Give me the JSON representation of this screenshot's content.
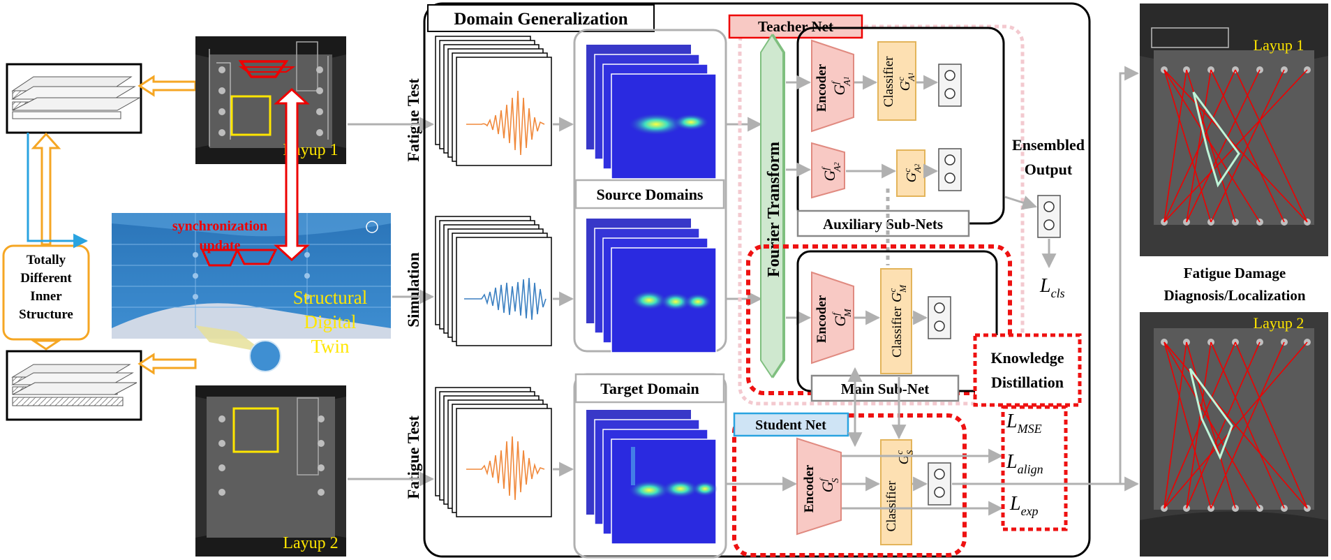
{
  "domain_generalization": "Domain Generalization",
  "teacher_net": "Teacher Net",
  "student_net": "Student Net",
  "rows": {
    "fatigue_test_top": "Fatigue Test",
    "simulation": "Simulation",
    "fatigue_test_bottom": "Fatigue Test"
  },
  "source_domains": "Source Domains",
  "target_domain": "Target Domain",
  "fourier_transform": "Fourier Transform",
  "encoder": "Encoder",
  "classifier": "Classifier",
  "auxiliary_subnets": "Auxiliary Sub-Nets",
  "main_subnet": "Main Sub-Net",
  "ensembled_output": [
    "Ensembled",
    "Output"
  ],
  "knowledge_distillation": [
    "Knowledge",
    "Distillation"
  ],
  "symbols": {
    "G": "G",
    "f": "f",
    "c": "c",
    "A1_base": "A",
    "A1_sub": "1",
    "A2_base": "A",
    "A2_sub": "2",
    "M": "M",
    "S": "S"
  },
  "losses": {
    "L": "L",
    "cls": "cls",
    "mse": "MSE",
    "align": "align",
    "exp": "exp"
  },
  "layup_1": "Layup 1",
  "layup_2": "Layup 2",
  "synchronization": "synchronization",
  "update": "update",
  "digital_twin": [
    "Structural",
    "Digital",
    "Twin"
  ],
  "inner_structure": [
    "Totally",
    "Different",
    "Inner",
    "Structure"
  ],
  "fatigue_damage": [
    "Fatigue Damage",
    "Diagnosis/Localization"
  ],
  "colors": {
    "red": "#ee0000",
    "orange": "#f5a623",
    "yellow": "#ffe600",
    "teal": "#29a3e0",
    "pink_fill": "#f8c9c4",
    "orange_fill": "#fde0b2",
    "green_fill": "#cfe8cf",
    "blue_fill": "#cfe4f5",
    "gray_arrow": "#b0b0b0",
    "pink_dots": "#f3c9cf"
  }
}
